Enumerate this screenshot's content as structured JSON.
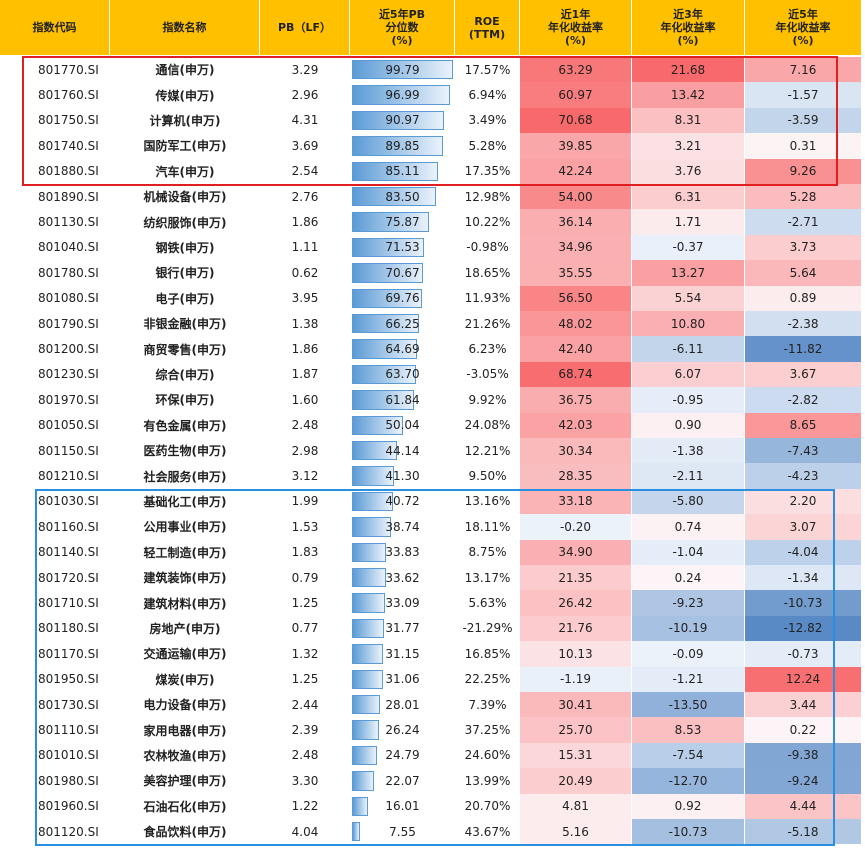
{
  "table": {
    "header": [
      [
        "指数代码"
      ],
      [
        "指数名称"
      ],
      [
        "PB（LF）"
      ],
      [
        "近5年PB",
        "分位数",
        "(%)"
      ],
      [
        "ROE",
        "(TTM)"
      ],
      [
        "近1年",
        "年化收益率",
        "(%)"
      ],
      [
        "近3年",
        "年化收益率",
        "(%)"
      ],
      [
        "近5年",
        "年化收益率",
        "(%)"
      ]
    ],
    "rows": [
      [
        "801770.SI",
        "通信(申万)",
        "3.29",
        "99.79",
        "17.57%",
        "63.29",
        "21.68",
        "7.16"
      ],
      [
        "801760.SI",
        "传媒(申万)",
        "2.96",
        "96.99",
        "6.94%",
        "60.97",
        "13.42",
        "-1.57"
      ],
      [
        "801750.SI",
        "计算机(申万)",
        "4.31",
        "90.97",
        "3.49%",
        "70.68",
        "8.31",
        "-3.59"
      ],
      [
        "801740.SI",
        "国防军工(申万)",
        "3.69",
        "89.85",
        "5.28%",
        "39.85",
        "3.21",
        "0.31"
      ],
      [
        "801880.SI",
        "汽车(申万)",
        "2.54",
        "85.11",
        "17.35%",
        "42.24",
        "3.76",
        "9.26"
      ],
      [
        "801890.SI",
        "机械设备(申万)",
        "2.76",
        "83.50",
        "12.98%",
        "54.00",
        "6.31",
        "5.28"
      ],
      [
        "801130.SI",
        "纺织服饰(申万)",
        "1.86",
        "75.87",
        "10.22%",
        "36.14",
        "1.71",
        "-2.71"
      ],
      [
        "801040.SI",
        "钢铁(申万)",
        "1.11",
        "71.53",
        "-0.98%",
        "34.96",
        "-0.37",
        "3.73"
      ],
      [
        "801780.SI",
        "银行(申万)",
        "0.62",
        "70.67",
        "18.65%",
        "35.55",
        "13.27",
        "5.64"
      ],
      [
        "801080.SI",
        "电子(申万)",
        "3.95",
        "69.76",
        "11.93%",
        "56.50",
        "5.54",
        "0.89"
      ],
      [
        "801790.SI",
        "非银金融(申万)",
        "1.38",
        "66.25",
        "21.26%",
        "48.02",
        "10.80",
        "-2.38"
      ],
      [
        "801200.SI",
        "商贸零售(申万)",
        "1.86",
        "64.69",
        "6.23%",
        "42.40",
        "-6.11",
        "-11.82"
      ],
      [
        "801230.SI",
        "综合(申万)",
        "1.87",
        "63.70",
        "-3.05%",
        "68.74",
        "6.07",
        "3.67"
      ],
      [
        "801970.SI",
        "环保(申万)",
        "1.60",
        "61.84",
        "9.92%",
        "36.75",
        "-0.95",
        "-2.82"
      ],
      [
        "801050.SI",
        "有色金属(申万)",
        "2.48",
        "50.04",
        "24.08%",
        "42.03",
        "0.90",
        "8.65"
      ],
      [
        "801150.SI",
        "医药生物(申万)",
        "2.98",
        "44.14",
        "12.21%",
        "30.34",
        "-1.38",
        "-7.43"
      ],
      [
        "801210.SI",
        "社会服务(申万)",
        "3.12",
        "41.30",
        "9.50%",
        "28.35",
        "-2.11",
        "-4.23"
      ],
      [
        "801030.SI",
        "基础化工(申万)",
        "1.99",
        "40.72",
        "13.16%",
        "33.18",
        "-5.80",
        "2.20"
      ],
      [
        "801160.SI",
        "公用事业(申万)",
        "1.53",
        "38.74",
        "18.11%",
        "-0.20",
        "0.74",
        "3.07"
      ],
      [
        "801140.SI",
        "轻工制造(申万)",
        "1.83",
        "33.83",
        "8.75%",
        "34.90",
        "-1.04",
        "-4.04"
      ],
      [
        "801720.SI",
        "建筑装饰(申万)",
        "0.79",
        "33.62",
        "13.17%",
        "21.35",
        "0.24",
        "-1.34"
      ],
      [
        "801710.SI",
        "建筑材料(申万)",
        "1.25",
        "33.09",
        "5.63%",
        "26.42",
        "-9.23",
        "-10.73"
      ],
      [
        "801180.SI",
        "房地产(申万)",
        "0.77",
        "31.77",
        "-21.29%",
        "21.76",
        "-10.19",
        "-12.82"
      ],
      [
        "801170.SI",
        "交通运输(申万)",
        "1.32",
        "31.15",
        "16.85%",
        "10.13",
        "-0.09",
        "-0.73"
      ],
      [
        "801950.SI",
        "煤炭(申万)",
        "1.25",
        "31.06",
        "22.25%",
        "-1.19",
        "-1.21",
        "12.24"
      ],
      [
        "801730.SI",
        "电力设备(申万)",
        "2.44",
        "28.01",
        "7.39%",
        "30.41",
        "-13.50",
        "3.44"
      ],
      [
        "801110.SI",
        "家用电器(申万)",
        "2.39",
        "26.24",
        "37.25%",
        "25.70",
        "8.53",
        "0.22"
      ],
      [
        "801010.SI",
        "农林牧渔(申万)",
        "2.48",
        "24.79",
        "24.60%",
        "15.31",
        "-7.54",
        "-9.38"
      ],
      [
        "801980.SI",
        "美容护理(申万)",
        "3.30",
        "22.07",
        "13.99%",
        "20.49",
        "-12.70",
        "-9.24"
      ],
      [
        "801960.SI",
        "石油石化(申万)",
        "1.22",
        "16.01",
        "20.70%",
        "4.81",
        "0.92",
        "4.44"
      ],
      [
        "801120.SI",
        "食品饮料(申万)",
        "4.04",
        "7.55",
        "43.67%",
        "5.16",
        "-10.73",
        "-5.18"
      ]
    ]
  }
}
